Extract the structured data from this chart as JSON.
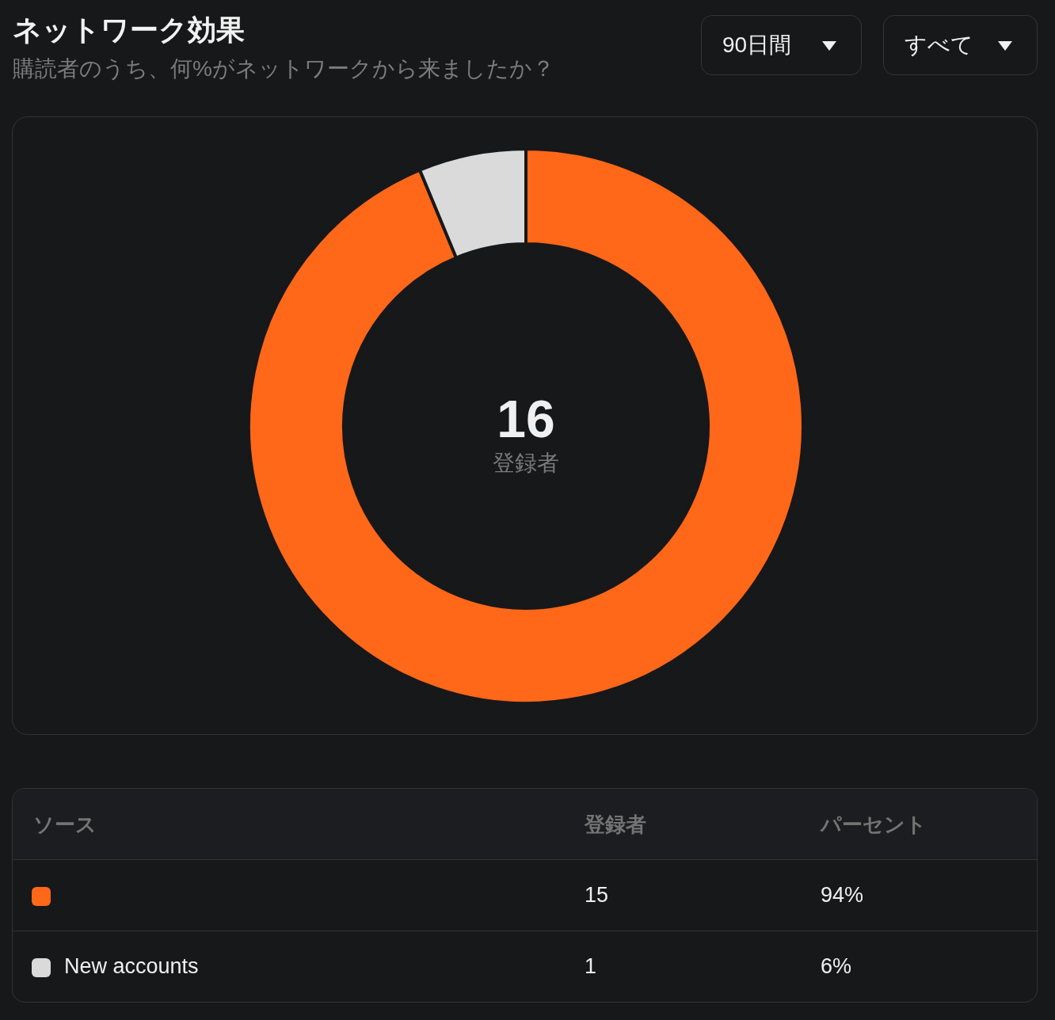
{
  "chart_data": {
    "type": "donut",
    "title": "ネットワーク効果",
    "subtitle": "購読者のうち、何%がネットワークから来ましたか？",
    "categories": [
      null,
      "New accounts"
    ],
    "values": [
      15,
      1
    ],
    "colors": [
      "#ff6719",
      "#dadada"
    ],
    "value_labels": [
      "15",
      "1"
    ],
    "legend": "bottom",
    "annotations": [
      "90日間",
      "すべて",
      "16",
      "登録者",
      "ソース",
      "登録者",
      "パーセント",
      "94%",
      "6%"
    ]
  }
}
